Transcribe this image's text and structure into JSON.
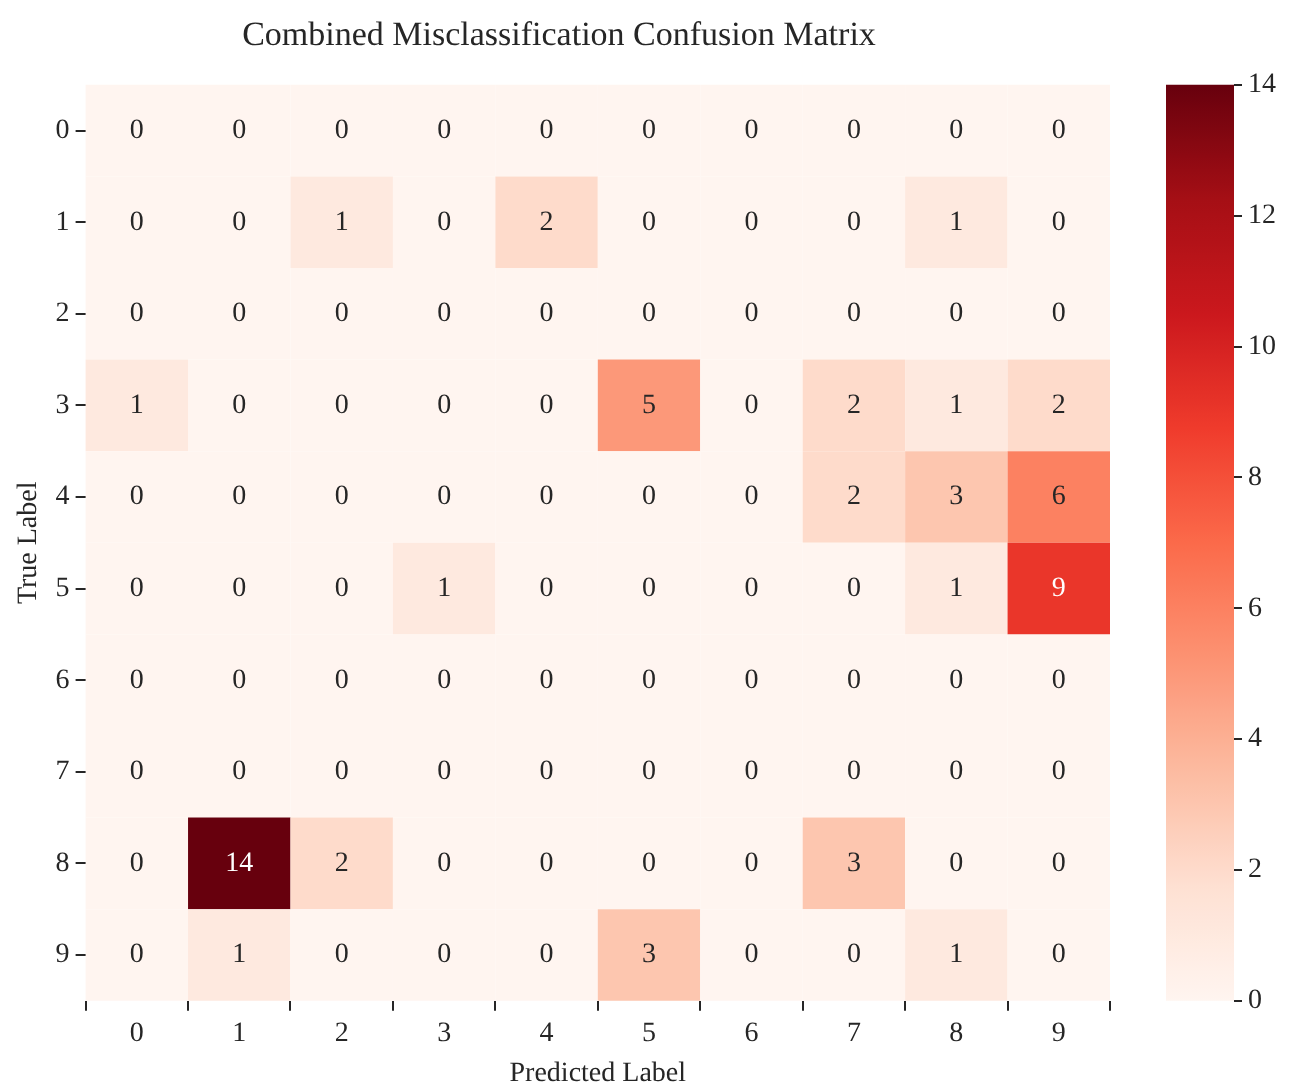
{
  "chart_data": {
    "type": "heatmap",
    "title": "Combined Misclassification Confusion Matrix",
    "xlabel": "Predicted Label",
    "ylabel": "True Label",
    "categories": [
      "0",
      "1",
      "2",
      "3",
      "4",
      "5",
      "6",
      "7",
      "8",
      "9"
    ],
    "y_categories": [
      "0",
      "1",
      "2",
      "3",
      "4",
      "5",
      "6",
      "7",
      "8",
      "9"
    ],
    "cells": [
      [
        0,
        0,
        0,
        0,
        0,
        0,
        0,
        0,
        0,
        0
      ],
      [
        0,
        0,
        1,
        0,
        2,
        0,
        0,
        0,
        1,
        0
      ],
      [
        0,
        0,
        0,
        0,
        0,
        0,
        0,
        0,
        0,
        0
      ],
      [
        1,
        0,
        0,
        0,
        0,
        5,
        0,
        2,
        1,
        2
      ],
      [
        0,
        0,
        0,
        0,
        0,
        0,
        0,
        2,
        3,
        6
      ],
      [
        0,
        0,
        0,
        1,
        0,
        0,
        0,
        0,
        1,
        9
      ],
      [
        0,
        0,
        0,
        0,
        0,
        0,
        0,
        0,
        0,
        0
      ],
      [
        0,
        0,
        0,
        0,
        0,
        0,
        0,
        0,
        0,
        0
      ],
      [
        0,
        14,
        2,
        0,
        0,
        0,
        0,
        3,
        0,
        0
      ],
      [
        0,
        1,
        0,
        0,
        0,
        3,
        0,
        0,
        1,
        0
      ]
    ],
    "clim": [
      0,
      14
    ],
    "cticks": [
      0,
      2,
      4,
      6,
      8,
      10,
      12,
      14
    ],
    "data_labels": true,
    "grid": false,
    "legend": false
  }
}
